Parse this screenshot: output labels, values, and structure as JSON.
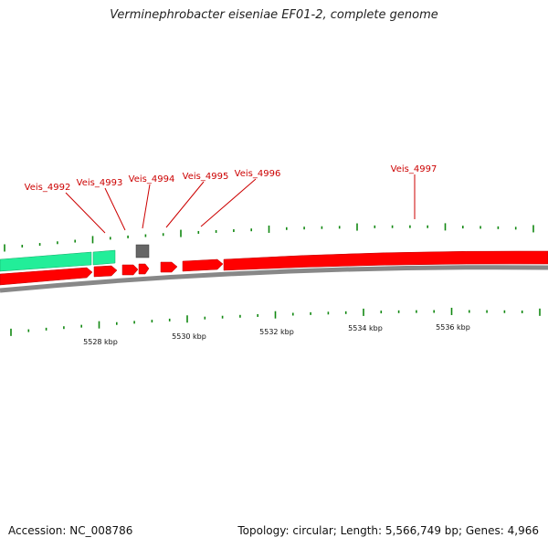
{
  "title": "Verminephrobacter eiseniae EF01-2, complete genome",
  "footer": {
    "accession": "Accession: NC_008786",
    "summary": "Topology: circular; Length: 5,566,749 bp; Genes: 4,966"
  },
  "colors": {
    "forward_cds": "#ff0000",
    "reverse_cds": "#22ee99",
    "rna": "#666666",
    "backbone": "#888888",
    "ticks": "#118811",
    "gene_label": "#cc0000"
  },
  "gene_labels": [
    "Veis_4992",
    "Veis_4993",
    "Veis_4994",
    "Veis_4995",
    "Veis_4996",
    "Veis_4997"
  ],
  "scale_labels": [
    "5528 kbp",
    "5530 kbp",
    "5532 kbp",
    "5534 kbp",
    "5536 kbp"
  ]
}
